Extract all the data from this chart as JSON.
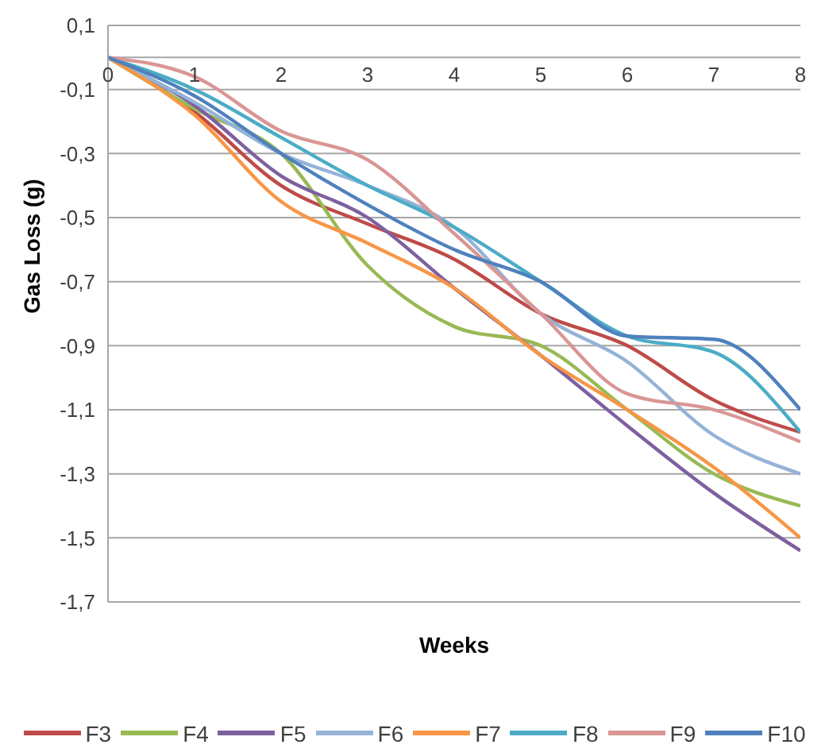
{
  "chart_data": {
    "type": "line",
    "xlabel": "Weeks",
    "ylabel": "Gas Loss (g)",
    "x": [
      0,
      1,
      2,
      3,
      4,
      5,
      6,
      7,
      8
    ],
    "xlim": [
      0,
      8
    ],
    "xticks": [
      0,
      1,
      2,
      3,
      4,
      5,
      6,
      7,
      8
    ],
    "ylim": [
      -1.7,
      0.1
    ],
    "yticks": [
      {
        "value": 0.1,
        "label": "0,1"
      },
      {
        "value": -0.1,
        "label": "-0,1"
      },
      {
        "value": -0.3,
        "label": "-0,3"
      },
      {
        "value": -0.5,
        "label": "-0,5"
      },
      {
        "value": -0.7,
        "label": "-0,7"
      },
      {
        "value": -0.9,
        "label": "-0,9"
      },
      {
        "value": -1.1,
        "label": "-1,1"
      },
      {
        "value": -1.3,
        "label": "-1,3"
      },
      {
        "value": -1.5,
        "label": "-1,5"
      },
      {
        "value": -1.7,
        "label": "-1,7"
      }
    ],
    "grid": "y",
    "legend": "bottom",
    "series": [
      {
        "name": "F3",
        "color": "#be4b48",
        "values": [
          0,
          -0.17,
          -0.4,
          -0.52,
          -0.63,
          -0.8,
          -0.9,
          -1.07,
          -1.17
        ]
      },
      {
        "name": "F4",
        "color": "#98b954",
        "values": [
          0,
          -0.16,
          -0.3,
          -0.65,
          -0.84,
          -0.9,
          -1.1,
          -1.3,
          -1.4
        ]
      },
      {
        "name": "F5",
        "color": "#7d60a0",
        "values": [
          0,
          -0.15,
          -0.37,
          -0.5,
          -0.72,
          -0.93,
          -1.15,
          -1.36,
          -1.54
        ]
      },
      {
        "name": "F6",
        "color": "#95b3d7",
        "values": [
          0,
          -0.14,
          -0.3,
          -0.4,
          -0.53,
          -0.8,
          -0.95,
          -1.18,
          -1.3
        ]
      },
      {
        "name": "F7",
        "color": "#f79646",
        "values": [
          0,
          -0.18,
          -0.45,
          -0.58,
          -0.72,
          -0.93,
          -1.1,
          -1.28,
          -1.5
        ]
      },
      {
        "name": "F8",
        "color": "#4bacc6",
        "values": [
          0,
          -0.1,
          -0.25,
          -0.4,
          -0.53,
          -0.7,
          -0.87,
          -0.92,
          -1.17
        ]
      },
      {
        "name": "F9",
        "color": "#d99694",
        "values": [
          0,
          -0.06,
          -0.23,
          -0.32,
          -0.55,
          -0.8,
          -1.05,
          -1.1,
          -1.2
        ]
      },
      {
        "name": "F10",
        "color": "#4f81bd",
        "values": [
          0,
          -0.12,
          -0.3,
          -0.46,
          -0.6,
          -0.7,
          -0.87,
          -0.88,
          -1.1
        ]
      }
    ]
  }
}
